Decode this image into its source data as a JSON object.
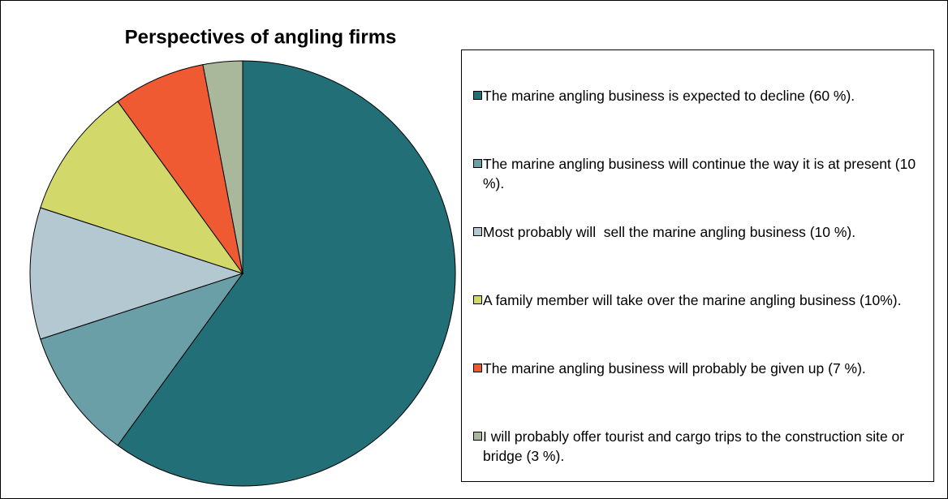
{
  "chart_data": {
    "type": "pie",
    "title": "Perspectives of angling firms",
    "categories": [
      "The marine angling business is expected to decline (60 %).",
      "The marine angling business will continue the way it is at present (10 %).",
      "Most probably will  sell the marine angling business (10 %).",
      "A family member will take over the marine angling business (10%).",
      "The marine angling business will probably be given up (7 %).",
      "I will probably offer tourist and cargo trips to the construction site or bridge (3 %)."
    ],
    "values": [
      60,
      10,
      10,
      10,
      7,
      3
    ],
    "colors": [
      "#226f78",
      "#6b9fa8",
      "#b3c8d0",
      "#d2d96a",
      "#f05a32",
      "#a9b89b"
    ],
    "legend": "right"
  }
}
